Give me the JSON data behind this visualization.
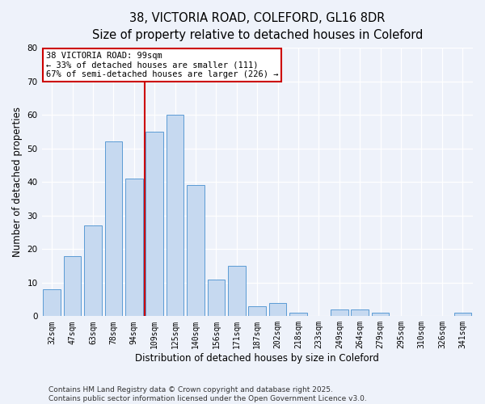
{
  "title_line1": "38, VICTORIA ROAD, COLEFORD, GL16 8DR",
  "title_line2": "Size of property relative to detached houses in Coleford",
  "xlabel": "Distribution of detached houses by size in Coleford",
  "ylabel": "Number of detached properties",
  "categories": [
    "32sqm",
    "47sqm",
    "63sqm",
    "78sqm",
    "94sqm",
    "109sqm",
    "125sqm",
    "140sqm",
    "156sqm",
    "171sqm",
    "187sqm",
    "202sqm",
    "218sqm",
    "233sqm",
    "249sqm",
    "264sqm",
    "279sqm",
    "295sqm",
    "310sqm",
    "326sqm",
    "341sqm"
  ],
  "values": [
    8,
    18,
    27,
    52,
    41,
    55,
    60,
    39,
    11,
    15,
    3,
    4,
    1,
    0,
    2,
    2,
    1,
    0,
    0,
    0,
    1
  ],
  "bar_color": "#c6d9f0",
  "bar_edge_color": "#5b9bd5",
  "vline_color": "#cc0000",
  "vline_x_idx": 4.5,
  "annotation_text": "38 VICTORIA ROAD: 99sqm\n← 33% of detached houses are smaller (111)\n67% of semi-detached houses are larger (226) →",
  "annotation_box_color": "#ffffff",
  "annotation_box_edge_color": "#cc0000",
  "ylim": [
    0,
    80
  ],
  "yticks": [
    0,
    10,
    20,
    30,
    40,
    50,
    60,
    70,
    80
  ],
  "footer_line1": "Contains HM Land Registry data © Crown copyright and database right 2025.",
  "footer_line2": "Contains public sector information licensed under the Open Government Licence v3.0.",
  "bg_color": "#eef2fa",
  "plot_bg_color": "#eef2fa",
  "grid_color": "#ffffff",
  "title_fontsize": 10.5,
  "subtitle_fontsize": 9.5,
  "tick_fontsize": 7,
  "label_fontsize": 8.5,
  "footer_fontsize": 6.5,
  "annot_fontsize": 7.5
}
